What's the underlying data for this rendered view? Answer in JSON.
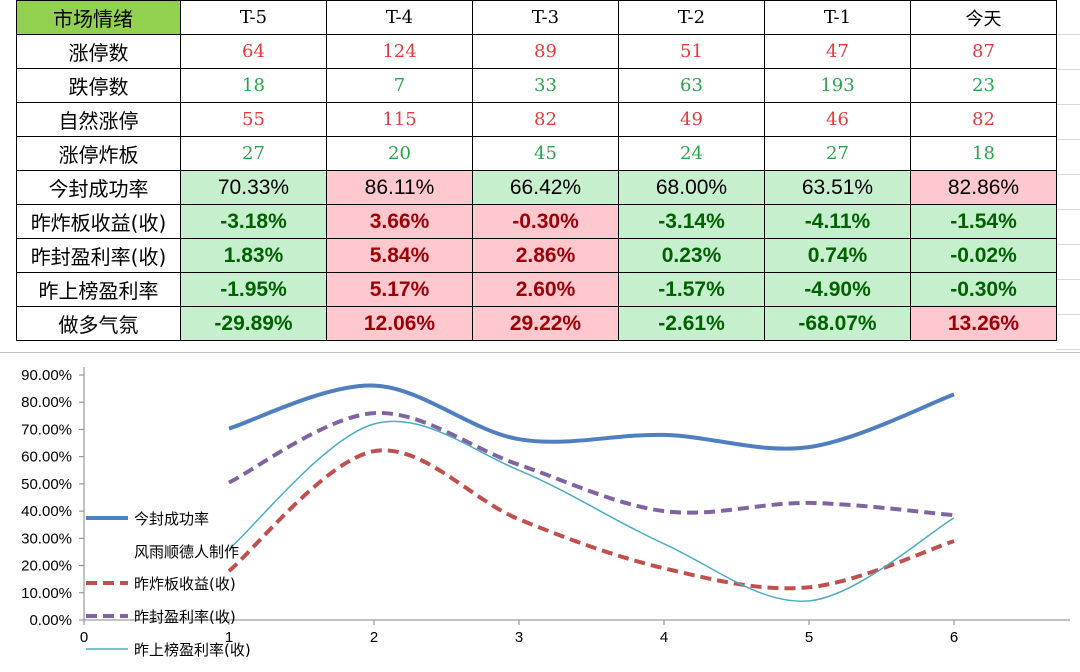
{
  "table": {
    "corner_label": "市场情绪",
    "columns": [
      "T-5",
      "T-4",
      "T-3",
      "T-2",
      "T-1",
      "今天"
    ],
    "rows": [
      {
        "label": "涨停数",
        "kind": "count",
        "color": "red",
        "values": [
          "64",
          "124",
          "89",
          "51",
          "47",
          "87"
        ]
      },
      {
        "label": "跌停数",
        "kind": "count",
        "color": "green",
        "values": [
          "18",
          "7",
          "33",
          "63",
          "193",
          "23"
        ]
      },
      {
        "label": "自然涨停",
        "kind": "count",
        "color": "red",
        "values": [
          "55",
          "115",
          "82",
          "49",
          "46",
          "82"
        ]
      },
      {
        "label": "涨停炸板",
        "kind": "count",
        "color": "green",
        "values": [
          "27",
          "20",
          "45",
          "24",
          "27",
          "18"
        ]
      },
      {
        "label": "今封成功率",
        "kind": "rate",
        "values": [
          "70.33%",
          "86.11%",
          "66.42%",
          "68.00%",
          "63.51%",
          "82.86%"
        ],
        "highlight": [
          "neg",
          "pos",
          "neg",
          "neg",
          "neg",
          "pos"
        ]
      },
      {
        "label": "昨炸板收益(收)",
        "kind": "bold",
        "values": [
          "-3.18%",
          "3.66%",
          "-0.30%",
          "-3.14%",
          "-4.11%",
          "-1.54%"
        ],
        "highlight": [
          "neg",
          "pos",
          "pos",
          "neg",
          "neg",
          "neg"
        ]
      },
      {
        "label": "昨封盈利率(收)",
        "kind": "bold",
        "values": [
          "1.83%",
          "5.84%",
          "2.86%",
          "0.23%",
          "0.74%",
          "-0.02%"
        ],
        "highlight": [
          "neg",
          "pos",
          "pos",
          "neg",
          "neg",
          "neg"
        ]
      },
      {
        "label": "昨上榜盈利率",
        "kind": "bold",
        "values": [
          "-1.95%",
          "5.17%",
          "2.60%",
          "-1.57%",
          "-4.90%",
          "-0.30%"
        ],
        "highlight": [
          "neg",
          "pos",
          "pos",
          "neg",
          "neg",
          "neg"
        ]
      },
      {
        "label": "做多气氛",
        "kind": "bold",
        "values": [
          "-29.89%",
          "12.06%",
          "29.22%",
          "-2.61%",
          "-68.07%",
          "13.26%"
        ],
        "highlight": [
          "neg",
          "pos",
          "pos",
          "neg",
          "neg",
          "pos"
        ]
      }
    ]
  },
  "colors": {
    "header_fill": "#92d050",
    "positive_fill": "#ffc7ce",
    "positive_text": "#9c0006",
    "negative_fill": "#c6efce",
    "negative_text": "#006100",
    "count_red": "#e03c3c",
    "count_green": "#2aa54a"
  },
  "chart_data": {
    "type": "line",
    "x": [
      1,
      2,
      3,
      4,
      5,
      6
    ],
    "xlim": [
      0,
      6.8
    ],
    "x_ticks": [
      "0",
      "1",
      "2",
      "3",
      "4",
      "5",
      "6"
    ],
    "ylim": [
      0,
      90
    ],
    "y_ticks": [
      "0.00%",
      "10.00%",
      "20.00%",
      "30.00%",
      "40.00%",
      "50.00%",
      "60.00%",
      "70.00%",
      "80.00%",
      "90.00%"
    ],
    "grid": false,
    "legend_position": "left",
    "smooth": true,
    "series": [
      {
        "name": "今封成功率",
        "values": [
          70.33,
          86.11,
          66.42,
          68.0,
          63.51,
          82.86
        ],
        "color": "#4f7fbf",
        "width": 4,
        "dash": "solid"
      },
      {
        "name": "昨炸板收益(收)",
        "values": [
          18.0,
          62.0,
          37.0,
          19.0,
          12.0,
          29.0
        ],
        "color": "#c0504d",
        "width": 4,
        "dash": "dashed"
      },
      {
        "name": "昨封盈利率(收)",
        "values": [
          50.5,
          76.0,
          57.0,
          40.0,
          43.0,
          38.5
        ],
        "color": "#8064a2",
        "width": 4,
        "dash": "dashed"
      },
      {
        "name": "昨上榜盈利率(收)",
        "values": [
          26.0,
          72.0,
          55.0,
          28.0,
          7.0,
          37.5
        ],
        "color": "#4bacc6",
        "width": 1.5,
        "dash": "solid"
      }
    ],
    "annotation": "风雨顺德人制作"
  }
}
